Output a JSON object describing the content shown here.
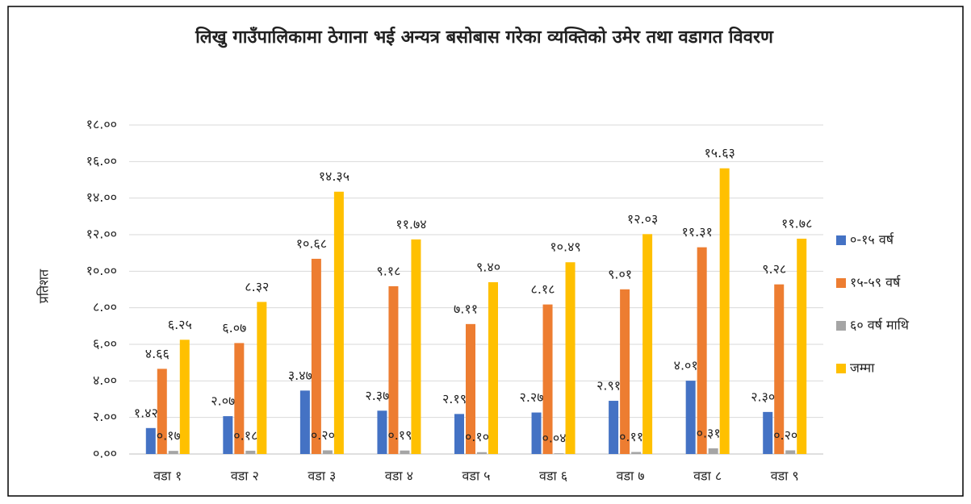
{
  "chart_data": {
    "type": "bar",
    "title": "लिखु गाउँपालिकामा ठेगाना भई अन्यत्र बसोबास गरेका व्यक्तिको उमेर तथा वडागत विवरण",
    "y_label": "प्रतिशत",
    "categories": [
      "वडा १",
      "वडा २",
      "वडा ३",
      "वडा ४",
      "वडा ५",
      "वडा ६",
      "वडा ७",
      "वडा ८",
      "वडा ९"
    ],
    "series": [
      {
        "name": "०-१५ वर्ष",
        "color": "#4472c4",
        "values": [
          1.42,
          2.07,
          3.47,
          2.37,
          2.19,
          2.27,
          2.91,
          4.01,
          2.3
        ],
        "value_labels": [
          "१.४२",
          "२.०७",
          "३.४७",
          "२.३७",
          "२.१९",
          "२.२७",
          "२.९१",
          "४.०१",
          "२.३०"
        ]
      },
      {
        "name": "१५-५९ वर्ष",
        "color": "#ed7d31",
        "values": [
          4.66,
          6.07,
          10.68,
          9.18,
          7.11,
          8.18,
          9.01,
          11.31,
          9.28
        ],
        "value_labels": [
          "४.६६",
          "६.०७",
          "१०.६८",
          "९.१८",
          "७.११",
          "८.१८",
          "९.०१",
          "११.३१",
          "९.२८"
        ]
      },
      {
        "name": "६० वर्ष माथि",
        "color": "#a5a5a5",
        "values": [
          0.17,
          0.18,
          0.2,
          0.19,
          0.1,
          0.04,
          0.11,
          0.31,
          0.2
        ],
        "value_labels": [
          "०.१७",
          "०.१८",
          "०.२०",
          "०.१९",
          "०.१०",
          "०.०४",
          "०.११",
          "०.३१",
          "०.२०"
        ]
      },
      {
        "name": "जम्मा",
        "color": "#ffc000",
        "values": [
          6.25,
          8.32,
          14.35,
          11.74,
          9.4,
          10.49,
          12.03,
          15.63,
          11.78
        ],
        "value_labels": [
          "६.२५",
          "८.३२",
          "१४.३५",
          "११.७४",
          "९.४०",
          "१०.४९",
          "१२.०३",
          "१५.६३",
          "११.७८"
        ]
      }
    ],
    "ylim": [
      0,
      18
    ],
    "yticks": [
      {
        "value": 0,
        "label": "०.००"
      },
      {
        "value": 2,
        "label": "२.००"
      },
      {
        "value": 4,
        "label": "४.००"
      },
      {
        "value": 6,
        "label": "६.००"
      },
      {
        "value": 8,
        "label": "८.००"
      },
      {
        "value": 10,
        "label": "१०.००"
      },
      {
        "value": 12,
        "label": "१२.००"
      },
      {
        "value": 14,
        "label": "१४.००"
      },
      {
        "value": 16,
        "label": "१६.००"
      },
      {
        "value": 18,
        "label": "१८.००"
      }
    ],
    "grid": true,
    "legend": "right"
  }
}
